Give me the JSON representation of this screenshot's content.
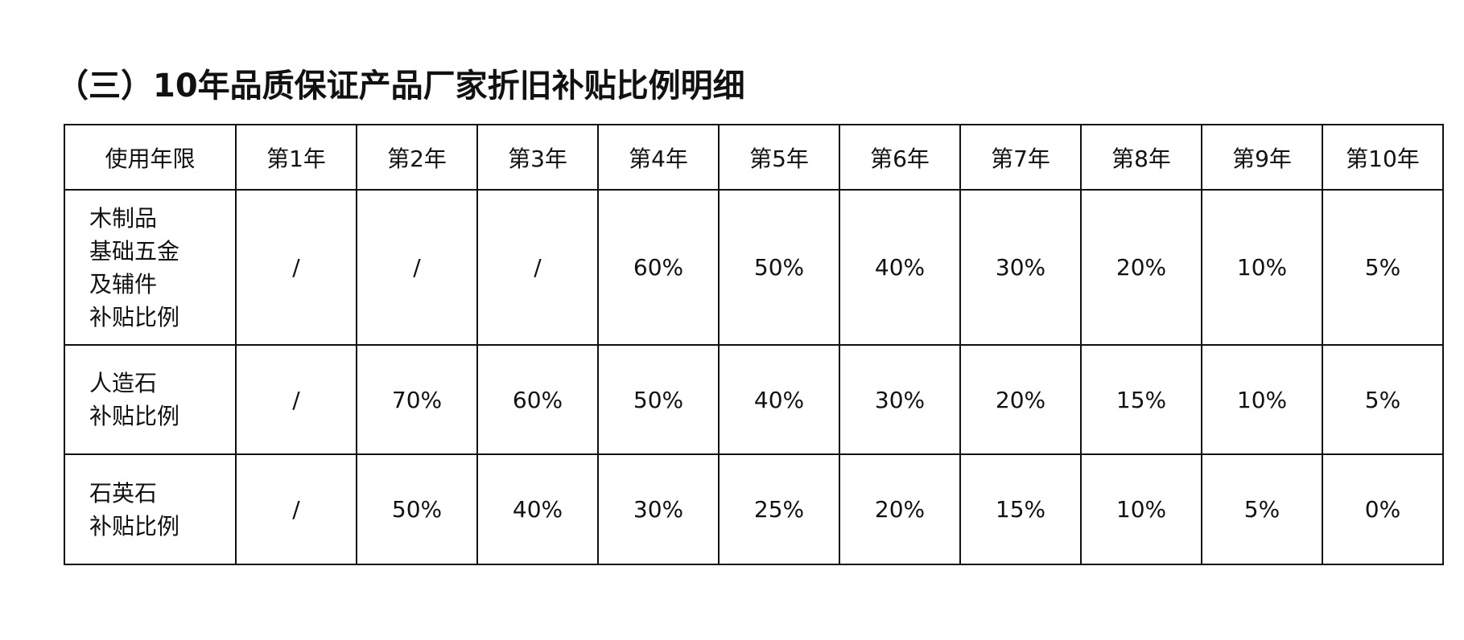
{
  "title": "（三）10年品质保证产品厂家折旧补贴比例明细",
  "table": {
    "headers": [
      "使用年限",
      "第1年",
      "第2年",
      "第3年",
      "第4年",
      "第5年",
      "第6年",
      "第7年",
      "第8年",
      "第9年",
      "第10年"
    ],
    "rows": [
      {
        "label_lines": [
          "木制品",
          "基础五金",
          "及辅件",
          "补贴比例"
        ],
        "values": [
          "/",
          "/",
          "/",
          "60%",
          "50%",
          "40%",
          "30%",
          "20%",
          "10%",
          "5%"
        ]
      },
      {
        "label_lines": [
          "人造石",
          "补贴比例"
        ],
        "values": [
          "/",
          "70%",
          "60%",
          "50%",
          "40%",
          "30%",
          "20%",
          "15%",
          "10%",
          "5%"
        ]
      },
      {
        "label_lines": [
          "石英石",
          "补贴比例"
        ],
        "values": [
          "/",
          "50%",
          "40%",
          "30%",
          "25%",
          "20%",
          "15%",
          "10%",
          "5%",
          "0%"
        ]
      }
    ]
  }
}
